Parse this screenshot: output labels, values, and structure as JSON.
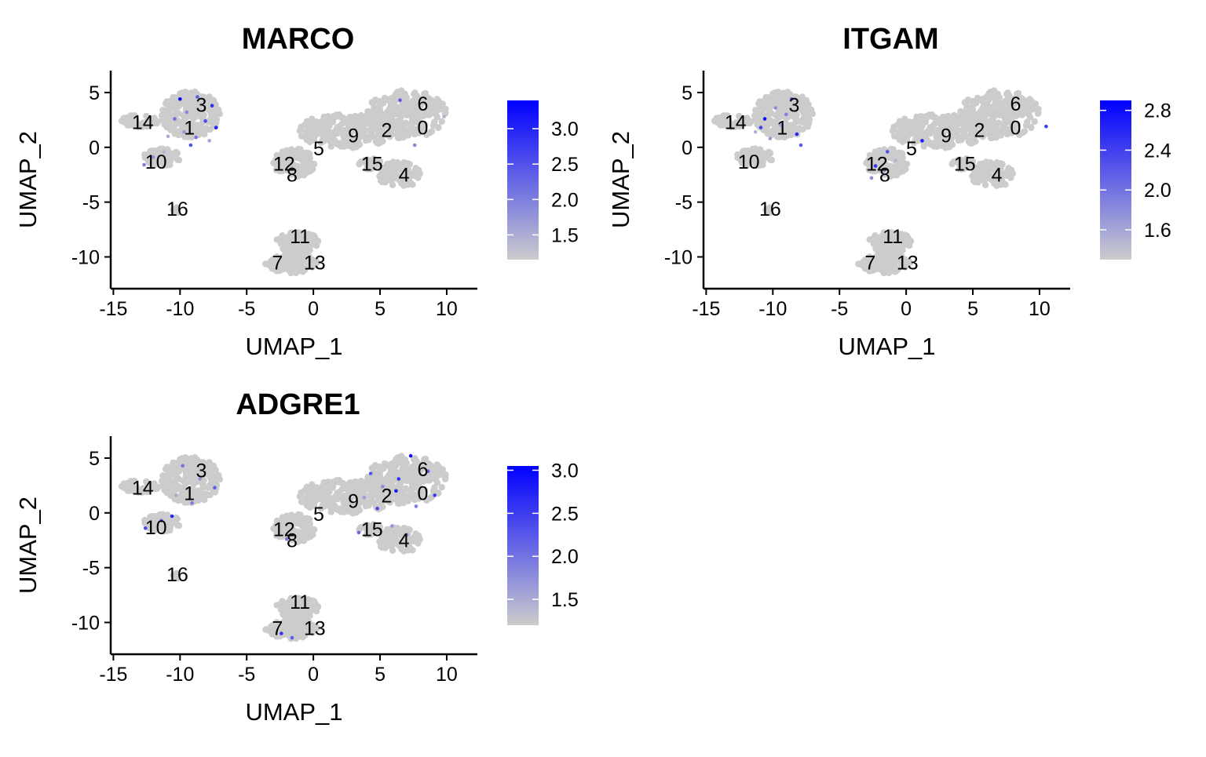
{
  "chart_data": [
    {
      "type": "scatter",
      "title": "MARCO",
      "xlabel": "UMAP_1",
      "ylabel": "UMAP_2",
      "xlim": [
        -15.2,
        12.3
      ],
      "ylim": [
        -12.9,
        7.0
      ],
      "xticks": [
        -15,
        -10,
        -5,
        0,
        5,
        10
      ],
      "yticks": [
        5,
        0,
        -5,
        -10
      ],
      "cluster_labels": [
        {
          "label": "6",
          "x": 8.2,
          "y": 4.0
        },
        {
          "label": "3",
          "x": -8.4,
          "y": 3.9
        },
        {
          "label": "14",
          "x": -12.8,
          "y": 2.3
        },
        {
          "label": "1",
          "x": -9.3,
          "y": 1.8
        },
        {
          "label": "2",
          "x": 5.5,
          "y": 1.6
        },
        {
          "label": "0",
          "x": 8.2,
          "y": 1.8
        },
        {
          "label": "9",
          "x": 3.0,
          "y": 1.1
        },
        {
          "label": "5",
          "x": 0.4,
          "y": -0.1
        },
        {
          "label": "10",
          "x": -11.8,
          "y": -1.3
        },
        {
          "label": "12",
          "x": -2.2,
          "y": -1.5
        },
        {
          "label": "15",
          "x": 4.4,
          "y": -1.5
        },
        {
          "label": "8",
          "x": -1.6,
          "y": -2.5
        },
        {
          "label": "4",
          "x": 6.8,
          "y": -2.5
        },
        {
          "label": "16",
          "x": -10.2,
          "y": -5.6
        },
        {
          "label": "11",
          "x": -1.0,
          "y": -8.1
        },
        {
          "label": "7",
          "x": -2.7,
          "y": -10.5
        },
        {
          "label": "13",
          "x": 0.1,
          "y": -10.5
        }
      ],
      "expressing_cells": [
        {
          "x": -10.0,
          "y": 4.4,
          "v": 3.3
        },
        {
          "x": -8.7,
          "y": 4.6,
          "v": 2.4
        },
        {
          "x": -7.6,
          "y": 3.8,
          "v": 2.9
        },
        {
          "x": -9.5,
          "y": 3.2,
          "v": 1.9
        },
        {
          "x": -10.4,
          "y": 2.6,
          "v": 2.2
        },
        {
          "x": -8.1,
          "y": 2.4,
          "v": 2.6
        },
        {
          "x": -7.3,
          "y": 1.8,
          "v": 3.0
        },
        {
          "x": -9.7,
          "y": 1.4,
          "v": 1.7
        },
        {
          "x": -8.8,
          "y": 0.9,
          "v": 2.1
        },
        {
          "x": -7.8,
          "y": 0.6,
          "v": 1.6
        },
        {
          "x": -10.9,
          "y": 1.0,
          "v": 1.5
        },
        {
          "x": -9.2,
          "y": 0.2,
          "v": 2.5
        },
        {
          "x": -12.0,
          "y": -0.9,
          "v": 1.8
        },
        {
          "x": -11.2,
          "y": -0.4,
          "v": 1.4
        },
        {
          "x": -12.7,
          "y": -1.6,
          "v": 2.0
        },
        {
          "x": 6.5,
          "y": 4.3,
          "v": 2.4
        },
        {
          "x": 9.8,
          "y": 2.8,
          "v": 1.4
        },
        {
          "x": 7.6,
          "y": 0.2,
          "v": 1.9
        },
        {
          "x": -1.6,
          "y": -1.9,
          "v": 1.5
        }
      ],
      "colorbar": {
        "ticks": [
          3.0,
          2.5,
          2.0,
          1.5
        ],
        "tick_labels": [
          "3.0",
          "2.5",
          "2.0",
          "1.5"
        ],
        "min": 1.15,
        "max": 3.4,
        "low_color": "#cccccc",
        "high_color": "#0000ff"
      }
    },
    {
      "type": "scatter",
      "title": "ITGAM",
      "xlabel": "UMAP_1",
      "ylabel": "UMAP_2",
      "xlim": [
        -15.2,
        12.3
      ],
      "ylim": [
        -12.9,
        7.0
      ],
      "xticks": [
        -15,
        -10,
        -5,
        0,
        5,
        10
      ],
      "yticks": [
        5,
        0,
        -5,
        -10
      ],
      "cluster_labels": [
        {
          "label": "6",
          "x": 8.2,
          "y": 4.0
        },
        {
          "label": "3",
          "x": -8.4,
          "y": 3.9
        },
        {
          "label": "14",
          "x": -12.8,
          "y": 2.3
        },
        {
          "label": "1",
          "x": -9.3,
          "y": 1.8
        },
        {
          "label": "2",
          "x": 5.5,
          "y": 1.6
        },
        {
          "label": "0",
          "x": 8.2,
          "y": 1.8
        },
        {
          "label": "9",
          "x": 3.0,
          "y": 1.1
        },
        {
          "label": "5",
          "x": 0.4,
          "y": -0.1
        },
        {
          "label": "10",
          "x": -11.8,
          "y": -1.3
        },
        {
          "label": "12",
          "x": -2.2,
          "y": -1.5
        },
        {
          "label": "15",
          "x": 4.4,
          "y": -1.5
        },
        {
          "label": "8",
          "x": -1.6,
          "y": -2.5
        },
        {
          "label": "4",
          "x": 6.8,
          "y": -2.5
        },
        {
          "label": "16",
          "x": -10.2,
          "y": -5.6
        },
        {
          "label": "11",
          "x": -1.0,
          "y": -8.1
        },
        {
          "label": "7",
          "x": -2.7,
          "y": -10.5
        },
        {
          "label": "13",
          "x": 0.1,
          "y": -10.5
        }
      ],
      "expressing_cells": [
        {
          "x": -10.6,
          "y": 2.6,
          "v": 2.8
        },
        {
          "x": -9.8,
          "y": 3.6,
          "v": 1.8
        },
        {
          "x": -8.6,
          "y": 4.4,
          "v": 2.1
        },
        {
          "x": -10.9,
          "y": 1.8,
          "v": 2.4
        },
        {
          "x": -9.4,
          "y": 2.0,
          "v": 1.6
        },
        {
          "x": -8.2,
          "y": 1.2,
          "v": 2.6
        },
        {
          "x": -7.9,
          "y": 0.2,
          "v": 2.2
        },
        {
          "x": -10.2,
          "y": 0.8,
          "v": 1.7
        },
        {
          "x": -11.3,
          "y": 1.4,
          "v": 1.5
        },
        {
          "x": -9.0,
          "y": 3.0,
          "v": 1.9
        },
        {
          "x": 1.2,
          "y": 0.6,
          "v": 2.7
        },
        {
          "x": -1.4,
          "y": -0.4,
          "v": 2.3
        },
        {
          "x": -2.3,
          "y": -1.7,
          "v": 2.5
        },
        {
          "x": -2.6,
          "y": -2.8,
          "v": 1.8
        },
        {
          "x": -1.7,
          "y": -2.2,
          "v": 1.6
        },
        {
          "x": 10.5,
          "y": 1.9,
          "v": 2.4
        },
        {
          "x": -0.8,
          "y": -1.2,
          "v": 1.5
        }
      ],
      "colorbar": {
        "ticks": [
          2.8,
          2.4,
          2.0,
          1.6
        ],
        "tick_labels": [
          "2.8",
          "2.4",
          "2.0",
          "1.6"
        ],
        "min": 1.3,
        "max": 2.9,
        "low_color": "#cccccc",
        "high_color": "#0000ff"
      }
    },
    {
      "type": "scatter",
      "title": "ADGRE1",
      "xlabel": "UMAP_1",
      "ylabel": "UMAP_2",
      "xlim": [
        -15.2,
        12.3
      ],
      "ylim": [
        -12.9,
        7.0
      ],
      "xticks": [
        -15,
        -10,
        -5,
        0,
        5,
        10
      ],
      "yticks": [
        5,
        0,
        -5,
        -10
      ],
      "cluster_labels": [
        {
          "label": "6",
          "x": 8.2,
          "y": 4.0
        },
        {
          "label": "3",
          "x": -8.4,
          "y": 3.9
        },
        {
          "label": "14",
          "x": -12.8,
          "y": 2.3
        },
        {
          "label": "1",
          "x": -9.3,
          "y": 1.8
        },
        {
          "label": "2",
          "x": 5.5,
          "y": 1.6
        },
        {
          "label": "0",
          "x": 8.2,
          "y": 1.8
        },
        {
          "label": "9",
          "x": 3.0,
          "y": 1.1
        },
        {
          "label": "5",
          "x": 0.4,
          "y": -0.1
        },
        {
          "label": "10",
          "x": -11.8,
          "y": -1.3
        },
        {
          "label": "12",
          "x": -2.2,
          "y": -1.5
        },
        {
          "label": "15",
          "x": 4.4,
          "y": -1.5
        },
        {
          "label": "8",
          "x": -1.6,
          "y": -2.5
        },
        {
          "label": "4",
          "x": 6.8,
          "y": -2.5
        },
        {
          "label": "16",
          "x": -10.2,
          "y": -5.6
        },
        {
          "label": "11",
          "x": -1.0,
          "y": -8.1
        },
        {
          "label": "7",
          "x": -2.7,
          "y": -10.5
        },
        {
          "label": "13",
          "x": 0.1,
          "y": -10.5
        }
      ],
      "expressing_cells": [
        {
          "x": -9.8,
          "y": 4.3,
          "v": 2.0
        },
        {
          "x": -8.5,
          "y": 3.1,
          "v": 1.7
        },
        {
          "x": -7.4,
          "y": 2.3,
          "v": 2.2
        },
        {
          "x": -10.3,
          "y": 1.6,
          "v": 1.5
        },
        {
          "x": -9.1,
          "y": 0.9,
          "v": 1.9
        },
        {
          "x": -12.6,
          "y": -1.4,
          "v": 2.4
        },
        {
          "x": -11.4,
          "y": -0.7,
          "v": 2.1
        },
        {
          "x": -10.6,
          "y": -0.3,
          "v": 2.7
        },
        {
          "x": 4.3,
          "y": 3.6,
          "v": 2.3
        },
        {
          "x": 5.2,
          "y": 2.4,
          "v": 1.8
        },
        {
          "x": 6.4,
          "y": 3.1,
          "v": 2.6
        },
        {
          "x": 7.3,
          "y": 5.2,
          "v": 2.9
        },
        {
          "x": 8.6,
          "y": 3.8,
          "v": 2.2
        },
        {
          "x": 9.1,
          "y": 1.6,
          "v": 2.5
        },
        {
          "x": 7.7,
          "y": 0.6,
          "v": 1.9
        },
        {
          "x": 6.2,
          "y": 2.0,
          "v": 2.8
        },
        {
          "x": 3.8,
          "y": 1.4,
          "v": 1.6
        },
        {
          "x": 4.8,
          "y": 0.4,
          "v": 2.4
        },
        {
          "x": 5.9,
          "y": -1.2,
          "v": 1.7
        },
        {
          "x": 3.4,
          "y": -1.8,
          "v": 2.1
        },
        {
          "x": -2.0,
          "y": -2.4,
          "v": 2.0
        },
        {
          "x": -2.4,
          "y": -11.0,
          "v": 2.6
        },
        {
          "x": -1.6,
          "y": -11.4,
          "v": 2.2
        },
        {
          "x": 7.0,
          "y": -2.0,
          "v": 1.8
        }
      ],
      "colorbar": {
        "ticks": [
          3.0,
          2.5,
          2.0,
          1.5
        ],
        "tick_labels": [
          "3.0",
          "2.5",
          "2.0",
          "1.5"
        ],
        "min": 1.2,
        "max": 3.05,
        "low_color": "#cccccc",
        "high_color": "#0000ff"
      }
    }
  ]
}
